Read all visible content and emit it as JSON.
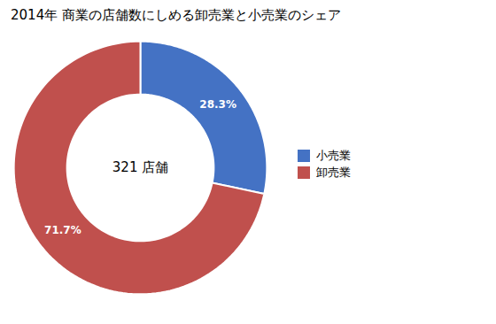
{
  "chart_data": {
    "type": "donut",
    "title": "2014年 商業の店舗数にしめる卸売業と小売業のシェア",
    "annotation": "321 店舗",
    "categories": [
      "小売業",
      "卸売業"
    ],
    "values": [
      28.3,
      71.7
    ],
    "value_labels": [
      "28.3%",
      "71.7%"
    ],
    "colors": [
      "#4472C4",
      "#C0504D"
    ],
    "data_labels": true,
    "legend": "right"
  }
}
